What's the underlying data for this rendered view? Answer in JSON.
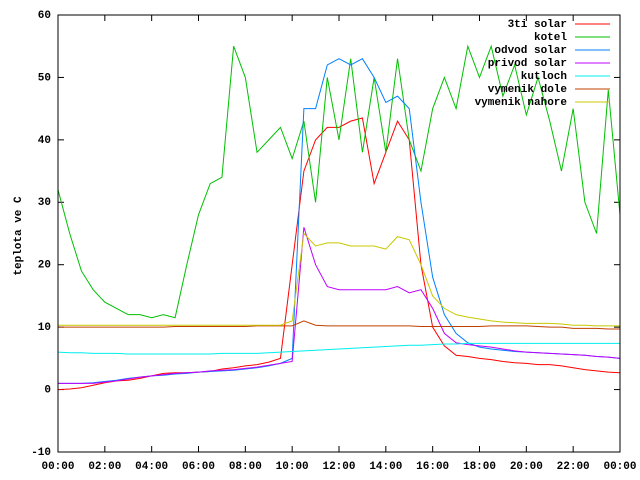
{
  "chart_data": {
    "type": "line",
    "ylabel": "teplota ve C",
    "x": [
      0,
      0.5,
      1,
      1.5,
      2,
      2.5,
      3,
      3.5,
      4,
      4.5,
      5,
      5.5,
      6,
      6.5,
      7,
      7.5,
      8,
      8.5,
      9,
      9.5,
      10,
      10.5,
      11,
      11.5,
      12,
      12.5,
      13,
      13.5,
      14,
      14.5,
      15,
      15.5,
      16,
      16.5,
      17,
      17.5,
      18,
      18.5,
      19,
      19.5,
      20,
      20.5,
      21,
      21.5,
      22,
      22.5,
      23,
      23.5,
      24
    ],
    "xlim": [
      0,
      24
    ],
    "xticks": [
      {
        "value": 0,
        "label": "00:00"
      },
      {
        "value": 2,
        "label": "02:00"
      },
      {
        "value": 4,
        "label": "04:00"
      },
      {
        "value": 6,
        "label": "06:00"
      },
      {
        "value": 8,
        "label": "08:00"
      },
      {
        "value": 10,
        "label": "10:00"
      },
      {
        "value": 12,
        "label": "12:00"
      },
      {
        "value": 14,
        "label": "14:00"
      },
      {
        "value": 16,
        "label": "16:00"
      },
      {
        "value": 18,
        "label": "18:00"
      },
      {
        "value": 20,
        "label": "20:00"
      },
      {
        "value": 22,
        "label": "22:00"
      },
      {
        "value": 24,
        "label": "00:00"
      }
    ],
    "ylim": [
      -10,
      60
    ],
    "yticks": [
      -10,
      0,
      10,
      20,
      30,
      40,
      50,
      60
    ],
    "legend": "top-right",
    "series": [
      {
        "name": "3ti solar",
        "color": "#ff0000",
        "values": [
          0,
          0.1,
          0.3,
          0.7,
          1.1,
          1.4,
          1.5,
          1.8,
          2.2,
          2.6,
          2.7,
          2.7,
          2.8,
          2.9,
          3.3,
          3.5,
          3.8,
          4,
          4.4,
          5,
          20,
          35,
          40,
          42,
          42,
          43,
          43.5,
          33,
          38,
          43,
          40,
          20,
          10,
          7,
          5.5,
          5.3,
          5,
          4.8,
          4.5,
          4.3,
          4.2,
          4,
          4,
          3.8,
          3.5,
          3.2,
          3,
          2.8,
          2.7
        ]
      },
      {
        "name": "kotel",
        "color": "#00c000",
        "values": [
          32,
          25,
          19,
          16,
          14,
          13,
          12,
          12,
          11.5,
          12,
          11.5,
          20,
          28,
          33,
          34,
          55,
          50,
          38,
          40,
          42,
          37,
          43,
          30,
          50,
          40,
          53,
          38,
          50,
          38,
          53,
          40,
          35,
          45,
          50,
          45,
          55,
          50,
          55,
          47,
          52,
          44,
          50,
          43,
          35,
          45,
          30,
          25,
          48,
          28
        ]
      },
      {
        "name": "odvod solar",
        "color": "#0080ff",
        "values": [
          1,
          1,
          1,
          1.1,
          1.3,
          1.5,
          1.8,
          2,
          2.2,
          2.3,
          2.5,
          2.6,
          2.8,
          2.9,
          3,
          3.1,
          3.3,
          3.5,
          3.8,
          4.2,
          5,
          45,
          45,
          52,
          53,
          52,
          53,
          50,
          46,
          47,
          45,
          30,
          18,
          12,
          9,
          7.5,
          6.8,
          6.5,
          6.3,
          6.1,
          6,
          5.9,
          5.8,
          5.7,
          5.6,
          5.5,
          5.3,
          5.2,
          5
        ]
      },
      {
        "name": "privod solar",
        "color": "#c000ff",
        "values": [
          1,
          1,
          1,
          1,
          1.2,
          1.4,
          1.7,
          2,
          2.2,
          2.4,
          2.6,
          2.7,
          2.8,
          3,
          3.1,
          3.2,
          3.4,
          3.6,
          3.9,
          4.2,
          4.5,
          26,
          20,
          16.5,
          16,
          16,
          16,
          16,
          16,
          16.5,
          15.5,
          16,
          13,
          9,
          7.5,
          7.2,
          7,
          6.8,
          6.5,
          6.2,
          6,
          5.9,
          5.8,
          5.7,
          5.6,
          5.5,
          5.3,
          5.2,
          5
        ]
      },
      {
        "name": "kutloch",
        "color": "#00eeee",
        "values": [
          6,
          5.9,
          5.9,
          5.8,
          5.8,
          5.8,
          5.7,
          5.7,
          5.7,
          5.7,
          5.7,
          5.7,
          5.7,
          5.7,
          5.8,
          5.8,
          5.8,
          5.8,
          5.9,
          6,
          6.1,
          6.2,
          6.3,
          6.4,
          6.5,
          6.6,
          6.7,
          6.8,
          6.9,
          7,
          7.1,
          7.1,
          7.2,
          7.3,
          7.3,
          7.4,
          7.4,
          7.4,
          7.4,
          7.4,
          7.4,
          7.4,
          7.4,
          7.4,
          7.4,
          7.4,
          7.4,
          7.4,
          7.4
        ]
      },
      {
        "name": "vymenik dole",
        "color": "#c04000",
        "values": [
          10,
          10,
          10,
          10,
          10,
          10,
          10,
          10,
          10,
          10,
          10.1,
          10.1,
          10.1,
          10.1,
          10.1,
          10.1,
          10.1,
          10.2,
          10.2,
          10.2,
          10.2,
          11,
          10.3,
          10.2,
          10.2,
          10.2,
          10.2,
          10.2,
          10.2,
          10.2,
          10.2,
          10.1,
          10.1,
          10.1,
          10.1,
          10.1,
          10.1,
          10.2,
          10.2,
          10.2,
          10.2,
          10.1,
          10,
          10,
          9.8,
          9.8,
          9.8,
          9.7,
          9.7
        ]
      },
      {
        "name": "vymenik nahore",
        "color": "#c8c800",
        "values": [
          10.3,
          10.3,
          10.3,
          10.3,
          10.3,
          10.3,
          10.3,
          10.3,
          10.3,
          10.3,
          10.3,
          10.3,
          10.3,
          10.3,
          10.3,
          10.3,
          10.3,
          10.3,
          10.3,
          10.3,
          11,
          25,
          23,
          23.5,
          23.5,
          23,
          23,
          23,
          22.5,
          24.5,
          24,
          20,
          15,
          13,
          12,
          11.6,
          11.3,
          11,
          10.8,
          10.7,
          10.6,
          10.6,
          10.6,
          10.5,
          10.3,
          10.3,
          10.2,
          10.2,
          10.2
        ]
      }
    ]
  }
}
